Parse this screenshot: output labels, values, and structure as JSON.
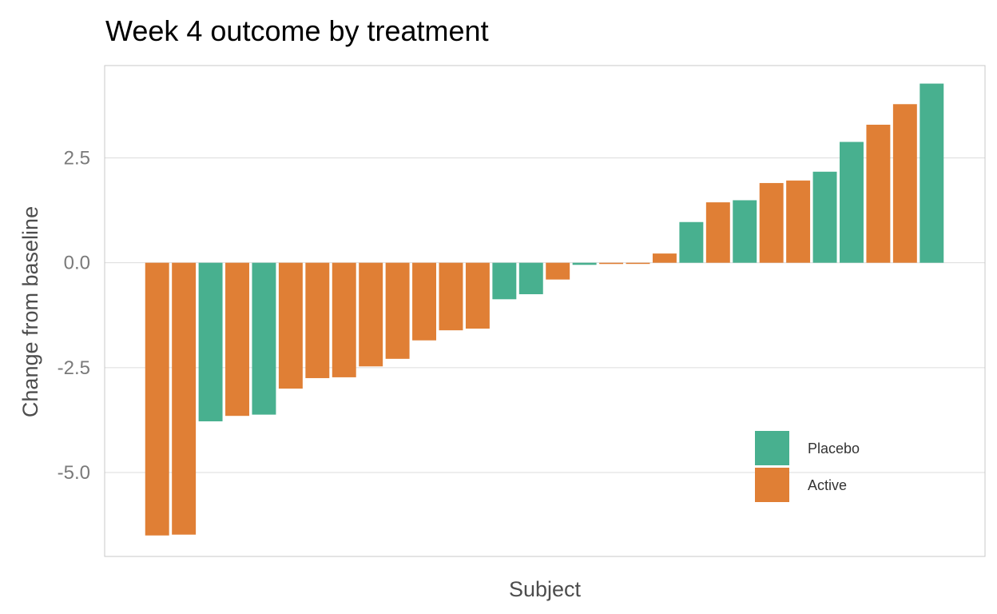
{
  "chart_data": {
    "type": "bar",
    "title": "Week 4 outcome by treatment",
    "xlabel": "Subject",
    "ylabel": "Change from baseline",
    "ylim": [
      -7.0,
      4.7
    ],
    "yticks": [
      2.5,
      0.0,
      -2.5,
      -5.0
    ],
    "ytick_labels": [
      "2.5",
      "0.0",
      "-2.5",
      "-5.0"
    ],
    "grid": "horizontal",
    "legend_position": "bottom-right",
    "colors": {
      "Placebo": "#48b08f",
      "Active": "#e07f35"
    },
    "legend": [
      {
        "name": "Placebo",
        "color": "#48b08f"
      },
      {
        "name": "Active",
        "color": "#e07f35"
      }
    ],
    "bars": [
      {
        "group": "Active",
        "value": -6.5
      },
      {
        "group": "Active",
        "value": -6.48
      },
      {
        "group": "Placebo",
        "value": -3.78
      },
      {
        "group": "Active",
        "value": -3.65
      },
      {
        "group": "Placebo",
        "value": -3.62
      },
      {
        "group": "Active",
        "value": -3.0
      },
      {
        "group": "Active",
        "value": -2.75
      },
      {
        "group": "Active",
        "value": -2.73
      },
      {
        "group": "Active",
        "value": -2.47
      },
      {
        "group": "Active",
        "value": -2.29
      },
      {
        "group": "Active",
        "value": -1.85
      },
      {
        "group": "Active",
        "value": -1.61
      },
      {
        "group": "Active",
        "value": -1.57
      },
      {
        "group": "Placebo",
        "value": -0.87
      },
      {
        "group": "Placebo",
        "value": -0.75
      },
      {
        "group": "Active",
        "value": -0.4
      },
      {
        "group": "Placebo",
        "value": -0.05
      },
      {
        "group": "Active",
        "value": -0.03
      },
      {
        "group": "Active",
        "value": -0.01
      },
      {
        "group": "Active",
        "value": 0.22
      },
      {
        "group": "Placebo",
        "value": 0.97
      },
      {
        "group": "Active",
        "value": 1.44
      },
      {
        "group": "Placebo",
        "value": 1.49
      },
      {
        "group": "Active",
        "value": 1.9
      },
      {
        "group": "Active",
        "value": 1.96
      },
      {
        "group": "Placebo",
        "value": 2.17
      },
      {
        "group": "Placebo",
        "value": 2.88
      },
      {
        "group": "Active",
        "value": 3.29
      },
      {
        "group": "Active",
        "value": 3.78
      },
      {
        "group": "Placebo",
        "value": 4.27
      }
    ]
  }
}
